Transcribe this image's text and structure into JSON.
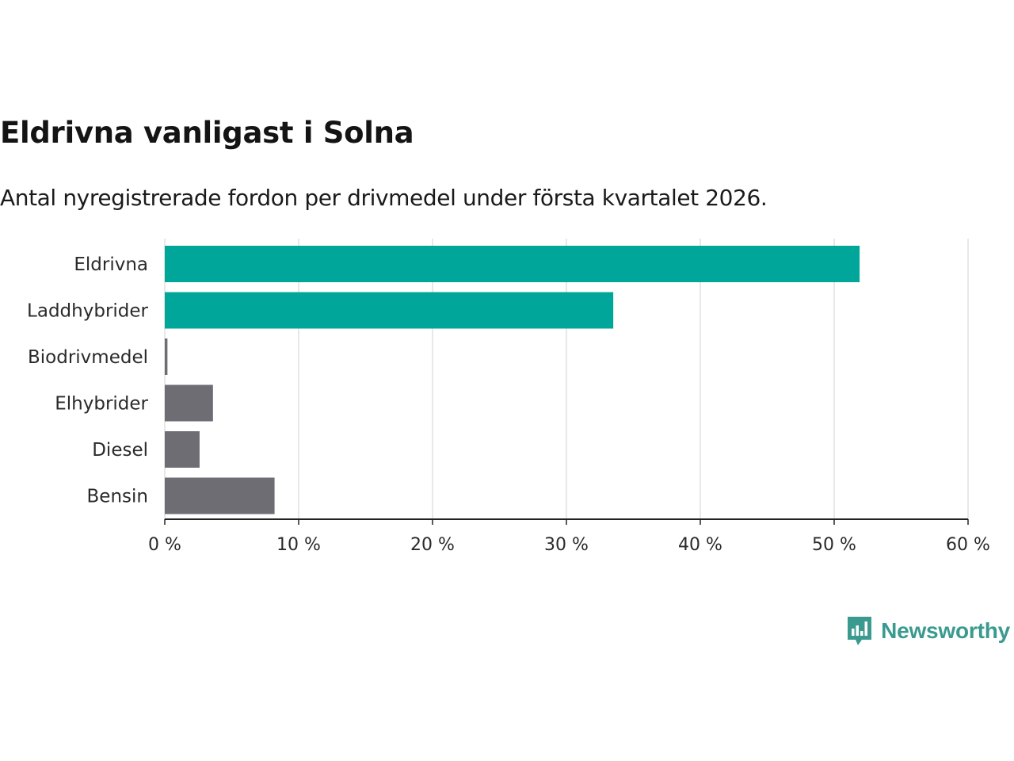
{
  "header": {
    "title": "Eldrivna vanligast i Solna",
    "subtitle": "Antal nyregistrerade fordon per drivmedel under första kvartalet 2026."
  },
  "brand": {
    "name": "Newsworthy",
    "icon": "newsworthy-logo-icon",
    "color": "#3a9a8f"
  },
  "colors": {
    "highlight": "#00a69a",
    "muted": "#6e6d73",
    "grid": "#d9d9d9",
    "axis": "#222222"
  },
  "chart_data": {
    "type": "bar",
    "orientation": "horizontal",
    "title": "Eldrivna vanligast i Solna",
    "subtitle": "Antal nyregistrerade fordon per drivmedel under första kvartalet 2026.",
    "categories": [
      "Eldrivna",
      "Laddhybrider",
      "Biodrivmedel",
      "Elhybrider",
      "Diesel",
      "Bensin"
    ],
    "values": [
      51.9,
      33.5,
      0.2,
      3.6,
      2.6,
      8.2
    ],
    "highlight": [
      true,
      true,
      false,
      false,
      false,
      false
    ],
    "unit": "%",
    "xlim": [
      0,
      60
    ],
    "xticks": [
      0,
      10,
      20,
      30,
      40,
      50,
      60
    ],
    "xtick_labels": [
      "0 %",
      "10 %",
      "20 %",
      "30 %",
      "40 %",
      "50 %",
      "60 %"
    ],
    "xlabel": "",
    "ylabel": "",
    "grid": true
  }
}
